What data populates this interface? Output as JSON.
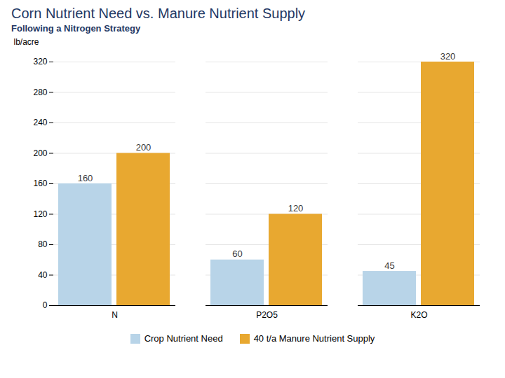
{
  "chart_data": {
    "type": "bar",
    "title": "Corn Nutrient Need vs. Manure Nutrient Supply",
    "subtitle": "Following a Nitrogen Strategy",
    "ylabel": "lb/acre",
    "categories": [
      "N",
      "P2O5",
      "K2O"
    ],
    "series": [
      {
        "name": "Crop Nutrient Need",
        "color": "#b8d4e8",
        "values": [
          160,
          60,
          45
        ]
      },
      {
        "name": "40 t/a Manure Nutrient Supply",
        "color": "#e8a830",
        "values": [
          200,
          120,
          320
        ]
      }
    ],
    "ylim": [
      0,
      320
    ],
    "yticks": [
      0,
      40,
      80,
      120,
      160,
      200,
      240,
      280,
      320
    ],
    "grid": true,
    "legend": "bottom",
    "data_labels": true
  }
}
